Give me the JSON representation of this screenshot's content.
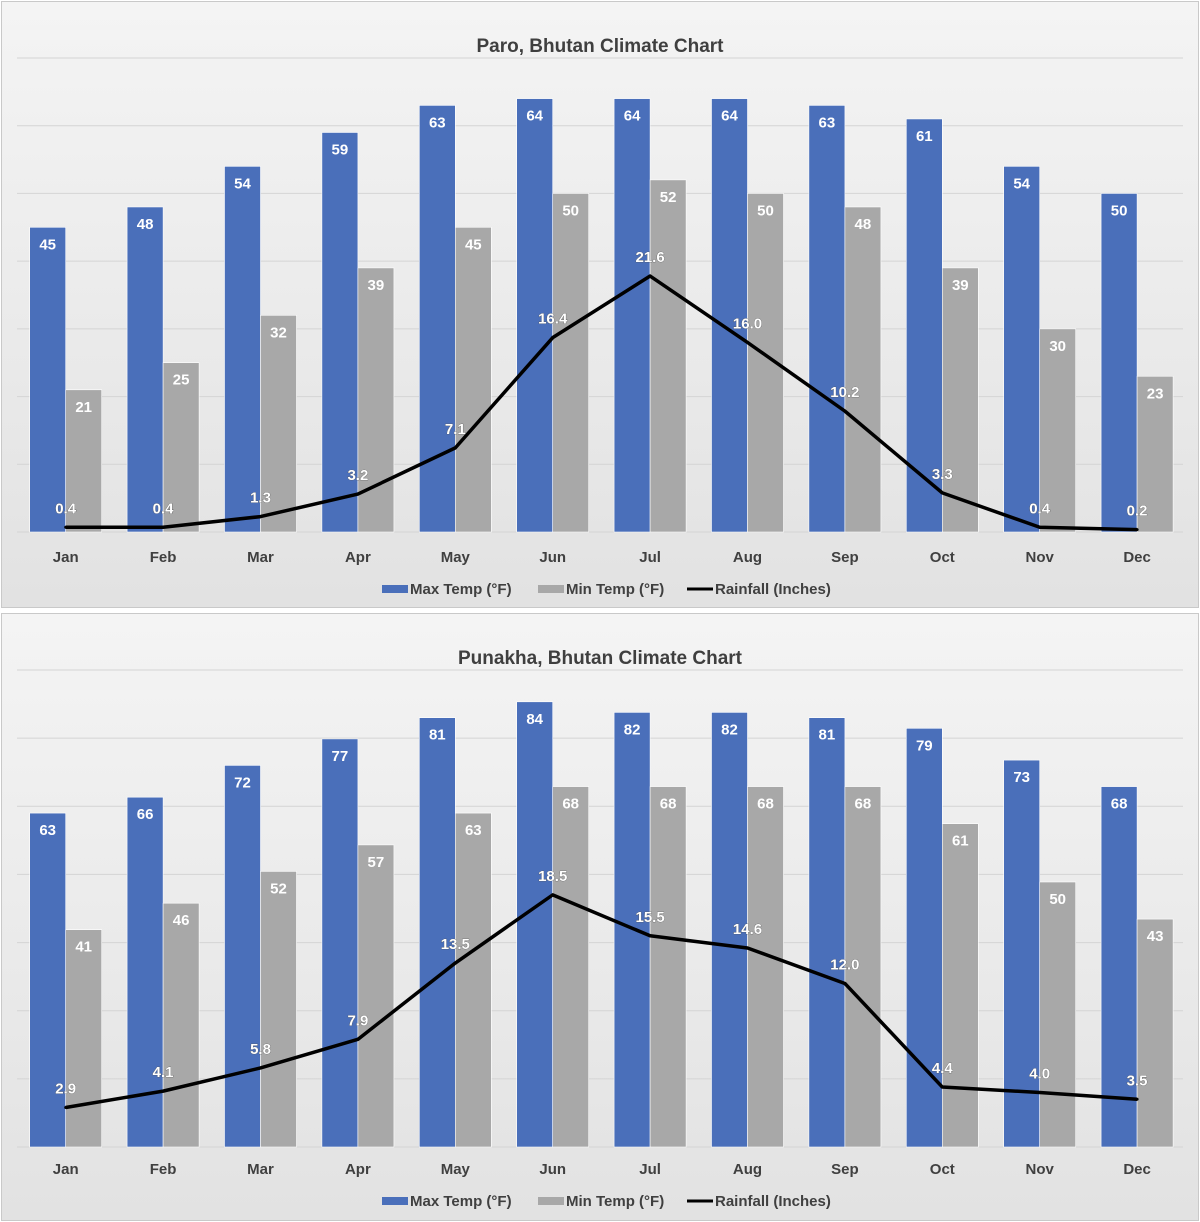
{
  "colors": {
    "max_temp": "#4a6fba",
    "min_temp": "#a8a8a8",
    "rainfall": "#000000",
    "gridline": "#d4d4d4"
  },
  "chart_data": [
    {
      "type": "bar",
      "title": "Paro, Bhutan Climate Chart",
      "categories": [
        "Jan",
        "Feb",
        "Mar",
        "Apr",
        "May",
        "Jun",
        "Jul",
        "Aug",
        "Sep",
        "Oct",
        "Nov",
        "Dec"
      ],
      "series": [
        {
          "name": "Max Temp (°F)",
          "type": "bar",
          "values": [
            45,
            48,
            54,
            59,
            63,
            64,
            64,
            64,
            63,
            61,
            54,
            50
          ]
        },
        {
          "name": "Min Temp (°F)",
          "type": "bar",
          "values": [
            21,
            25,
            32,
            39,
            45,
            50,
            52,
            50,
            48,
            39,
            30,
            23
          ]
        },
        {
          "name": "Rainfall (Inches)",
          "type": "line",
          "values": [
            0.4,
            0.4,
            1.3,
            3.2,
            7.1,
            16.4,
            21.6,
            16.0,
            10.2,
            3.3,
            0.4,
            0.2
          ],
          "labels": [
            "0.4",
            "0.4",
            "1.3",
            "3.2",
            "7.1",
            "16.4",
            "21.6",
            "16.0",
            "10.2",
            "3.3",
            "0.4",
            "0.2"
          ]
        }
      ],
      "ylim": [
        0,
        70
      ],
      "y2lim": [
        0,
        40
      ],
      "grid": true,
      "legend": "bottom"
    },
    {
      "type": "bar",
      "title": "Punakha, Bhutan Climate Chart",
      "categories": [
        "Jan",
        "Feb",
        "Mar",
        "Apr",
        "May",
        "Jun",
        "Jul",
        "Aug",
        "Sep",
        "Oct",
        "Nov",
        "Dec"
      ],
      "series": [
        {
          "name": "Max Temp (°F)",
          "type": "bar",
          "values": [
            63,
            66,
            72,
            77,
            81,
            84,
            82,
            82,
            81,
            79,
            73,
            68
          ]
        },
        {
          "name": "Min Temp (°F)",
          "type": "bar",
          "values": [
            41,
            46,
            52,
            57,
            63,
            68,
            68,
            68,
            68,
            61,
            50,
            43
          ]
        },
        {
          "name": "Rainfall (Inches)",
          "type": "line",
          "values": [
            2.9,
            4.1,
            5.8,
            7.9,
            13.5,
            18.5,
            15.5,
            14.6,
            12.0,
            4.4,
            4.0,
            3.5
          ],
          "labels": [
            "2.9",
            "4.1",
            "5.8",
            "7.9",
            "13.5",
            "18.5",
            "15.5",
            "14.6",
            "12.0",
            "4.4",
            "4.0",
            "3.5"
          ]
        }
      ],
      "ylim": [
        0,
        90
      ],
      "y2lim": [
        0,
        35
      ],
      "grid": true,
      "legend": "bottom"
    }
  ]
}
